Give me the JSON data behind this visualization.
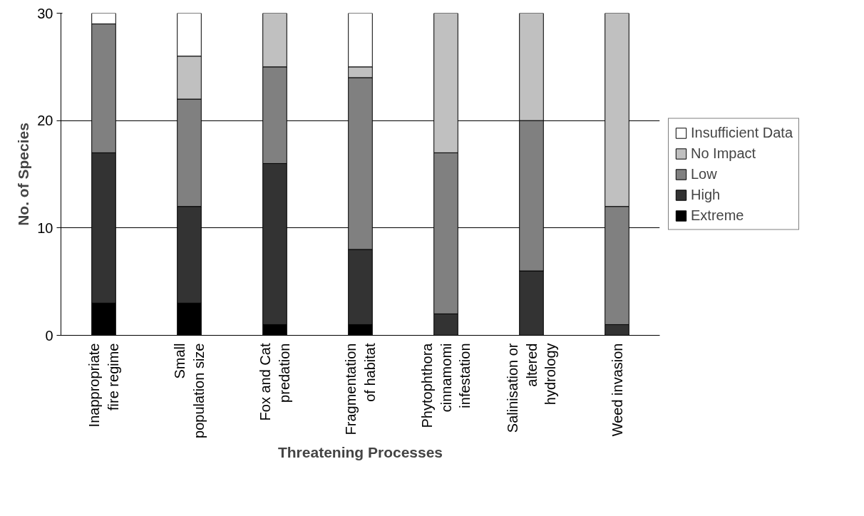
{
  "chart_data": {
    "type": "bar",
    "stacked": true,
    "xlabel": "Threatening Processes",
    "ylabel": "No. of Species",
    "categories": [
      "Inappropriate fire regime",
      "Small population size",
      "Fox and Cat predation",
      "Fragmentation of habitat",
      "Phytophthora cinnamomi infestation",
      "Salinisation or altered hydrology",
      "Weed invasion"
    ],
    "series": [
      {
        "name": "Extreme",
        "color": "#000000",
        "values": [
          3,
          3,
          1,
          1,
          0,
          0,
          0
        ]
      },
      {
        "name": "High",
        "color": "#333333",
        "values": [
          14,
          9,
          15,
          7,
          2,
          6,
          1
        ]
      },
      {
        "name": "Low",
        "color": "#808080",
        "values": [
          12,
          10,
          9,
          16,
          15,
          14,
          11
        ]
      },
      {
        "name": "No Impact",
        "color": "#c0c0c0",
        "values": [
          0,
          4,
          5,
          1,
          13,
          10,
          18
        ]
      },
      {
        "name": "Insufficient Data",
        "color": "#ffffff",
        "values": [
          1,
          4,
          0,
          5,
          0,
          0,
          0
        ]
      }
    ],
    "ylim": [
      0,
      30
    ],
    "yticks": [
      0,
      10,
      20,
      30
    ],
    "grid": "y",
    "legend": "right"
  }
}
